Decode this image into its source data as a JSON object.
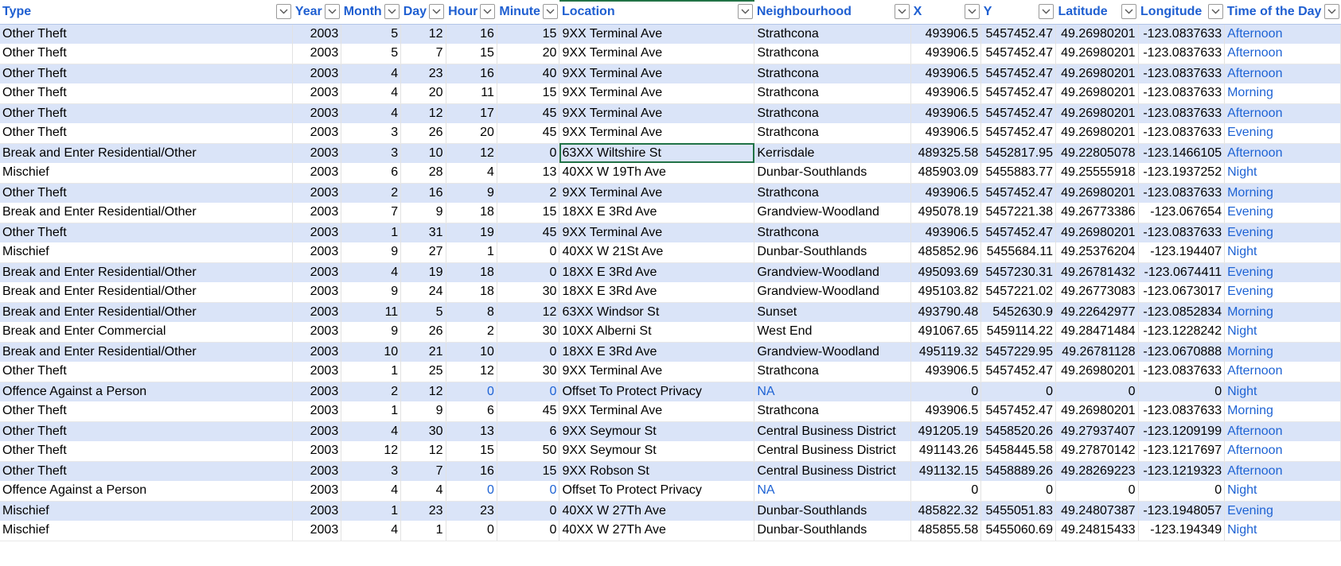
{
  "columns": [
    {
      "label": "Type",
      "key": "type"
    },
    {
      "label": "Year",
      "key": "year"
    },
    {
      "label": "Month",
      "key": "month"
    },
    {
      "label": "Day",
      "key": "day"
    },
    {
      "label": "Hour",
      "key": "hour"
    },
    {
      "label": "Minute",
      "key": "minute"
    },
    {
      "label": "Location",
      "key": "location"
    },
    {
      "label": "Neighbourhood",
      "key": "neighbourhood"
    },
    {
      "label": "X",
      "key": "x"
    },
    {
      "label": "Y",
      "key": "y"
    },
    {
      "label": "Latitude",
      "key": "lat"
    },
    {
      "label": "Longitude",
      "key": "lon"
    },
    {
      "label": "Time of the Day",
      "key": "tod"
    }
  ],
  "rows": [
    [
      "Other Theft",
      "2003",
      "5",
      "12",
      "16",
      "15",
      "9XX Terminal Ave",
      "Strathcona",
      "493906.5",
      "5457452.47",
      "49.26980201",
      "-123.0837633",
      "Afternoon"
    ],
    [
      "Other Theft",
      "2003",
      "5",
      "7",
      "15",
      "20",
      "9XX Terminal Ave",
      "Strathcona",
      "493906.5",
      "5457452.47",
      "49.26980201",
      "-123.0837633",
      "Afternoon"
    ],
    [
      "Other Theft",
      "2003",
      "4",
      "23",
      "16",
      "40",
      "9XX Terminal Ave",
      "Strathcona",
      "493906.5",
      "5457452.47",
      "49.26980201",
      "-123.0837633",
      "Afternoon"
    ],
    [
      "Other Theft",
      "2003",
      "4",
      "20",
      "11",
      "15",
      "9XX Terminal Ave",
      "Strathcona",
      "493906.5",
      "5457452.47",
      "49.26980201",
      "-123.0837633",
      "Morning"
    ],
    [
      "Other Theft",
      "2003",
      "4",
      "12",
      "17",
      "45",
      "9XX Terminal Ave",
      "Strathcona",
      "493906.5",
      "5457452.47",
      "49.26980201",
      "-123.0837633",
      "Afternoon"
    ],
    [
      "Other Theft",
      "2003",
      "3",
      "26",
      "20",
      "45",
      "9XX Terminal Ave",
      "Strathcona",
      "493906.5",
      "5457452.47",
      "49.26980201",
      "-123.0837633",
      "Evening"
    ],
    [
      "Break and Enter Residential/Other",
      "2003",
      "3",
      "10",
      "12",
      "0",
      "63XX Wiltshire St",
      "Kerrisdale",
      "489325.58",
      "5452817.95",
      "49.22805078",
      "-123.1466105",
      "Afternoon"
    ],
    [
      "Mischief",
      "2003",
      "6",
      "28",
      "4",
      "13",
      "40XX W 19Th Ave",
      "Dunbar-Southlands",
      "485903.09",
      "5455883.77",
      "49.25555918",
      "-123.1937252",
      "Night"
    ],
    [
      "Other Theft",
      "2003",
      "2",
      "16",
      "9",
      "2",
      "9XX Terminal Ave",
      "Strathcona",
      "493906.5",
      "5457452.47",
      "49.26980201",
      "-123.0837633",
      "Morning"
    ],
    [
      "Break and Enter Residential/Other",
      "2003",
      "7",
      "9",
      "18",
      "15",
      "18XX E 3Rd Ave",
      "Grandview-Woodland",
      "495078.19",
      "5457221.38",
      "49.26773386",
      "-123.067654",
      "Evening"
    ],
    [
      "Other Theft",
      "2003",
      "1",
      "31",
      "19",
      "45",
      "9XX Terminal Ave",
      "Strathcona",
      "493906.5",
      "5457452.47",
      "49.26980201",
      "-123.0837633",
      "Evening"
    ],
    [
      "Mischief",
      "2003",
      "9",
      "27",
      "1",
      "0",
      "40XX W 21St Ave",
      "Dunbar-Southlands",
      "485852.96",
      "5455684.11",
      "49.25376204",
      "-123.194407",
      "Night"
    ],
    [
      "Break and Enter Residential/Other",
      "2003",
      "4",
      "19",
      "18",
      "0",
      "18XX E 3Rd Ave",
      "Grandview-Woodland",
      "495093.69",
      "5457230.31",
      "49.26781432",
      "-123.0674411",
      "Evening"
    ],
    [
      "Break and Enter Residential/Other",
      "2003",
      "9",
      "24",
      "18",
      "30",
      "18XX E 3Rd Ave",
      "Grandview-Woodland",
      "495103.82",
      "5457221.02",
      "49.26773083",
      "-123.0673017",
      "Evening"
    ],
    [
      "Break and Enter Residential/Other",
      "2003",
      "11",
      "5",
      "8",
      "12",
      "63XX Windsor St",
      "Sunset",
      "493790.48",
      "5452630.9",
      "49.22642977",
      "-123.0852834",
      "Morning"
    ],
    [
      "Break and Enter Commercial",
      "2003",
      "9",
      "26",
      "2",
      "30",
      "10XX Alberni St",
      "West End",
      "491067.65",
      "5459114.22",
      "49.28471484",
      "-123.1228242",
      "Night"
    ],
    [
      "Break and Enter Residential/Other",
      "2003",
      "10",
      "21",
      "10",
      "0",
      "18XX E 3Rd Ave",
      "Grandview-Woodland",
      "495119.32",
      "5457229.95",
      "49.26781128",
      "-123.0670888",
      "Morning"
    ],
    [
      "Other Theft",
      "2003",
      "1",
      "25",
      "12",
      "30",
      "9XX Terminal Ave",
      "Strathcona",
      "493906.5",
      "5457452.47",
      "49.26980201",
      "-123.0837633",
      "Afternoon"
    ],
    [
      "Offence Against a Person",
      "2003",
      "2",
      "12",
      "0",
      "0",
      "Offset To Protect Privacy",
      "NA",
      "0",
      "0",
      "0",
      "0",
      "Night"
    ],
    [
      "Other Theft",
      "2003",
      "1",
      "9",
      "6",
      "45",
      "9XX Terminal Ave",
      "Strathcona",
      "493906.5",
      "5457452.47",
      "49.26980201",
      "-123.0837633",
      "Morning"
    ],
    [
      "Other Theft",
      "2003",
      "4",
      "30",
      "13",
      "6",
      "9XX Seymour St",
      "Central Business District",
      "491205.19",
      "5458520.26",
      "49.27937407",
      "-123.1209199",
      "Afternoon"
    ],
    [
      "Other Theft",
      "2003",
      "12",
      "12",
      "15",
      "50",
      "9XX Seymour St",
      "Central Business District",
      "491143.26",
      "5458445.58",
      "49.27870142",
      "-123.1217697",
      "Afternoon"
    ],
    [
      "Other Theft",
      "2003",
      "3",
      "7",
      "16",
      "15",
      "9XX Robson St",
      "Central Business District",
      "491132.15",
      "5458889.26",
      "49.28269223",
      "-123.1219323",
      "Afternoon"
    ],
    [
      "Offence Against a Person",
      "2003",
      "4",
      "4",
      "0",
      "0",
      "Offset To Protect Privacy",
      "NA",
      "0",
      "0",
      "0",
      "0",
      "Night"
    ],
    [
      "Mischief",
      "2003",
      "1",
      "23",
      "23",
      "0",
      "40XX W 27Th Ave",
      "Dunbar-Southlands",
      "485822.32",
      "5455051.83",
      "49.24807387",
      "-123.1948057",
      "Evening"
    ],
    [
      "Mischief",
      "2003",
      "4",
      "1",
      "0",
      "0",
      "40XX W 27Th Ave",
      "Dunbar-Southlands",
      "485855.58",
      "5455060.69",
      "49.24815433",
      "-123.194349",
      "Night"
    ]
  ],
  "selected_cell": {
    "row": 6,
    "col": 6
  },
  "colors": {
    "header_text": "#1f5fd1",
    "band": "#dae4f8",
    "link": "#1e63d4",
    "selection": "#217346"
  }
}
